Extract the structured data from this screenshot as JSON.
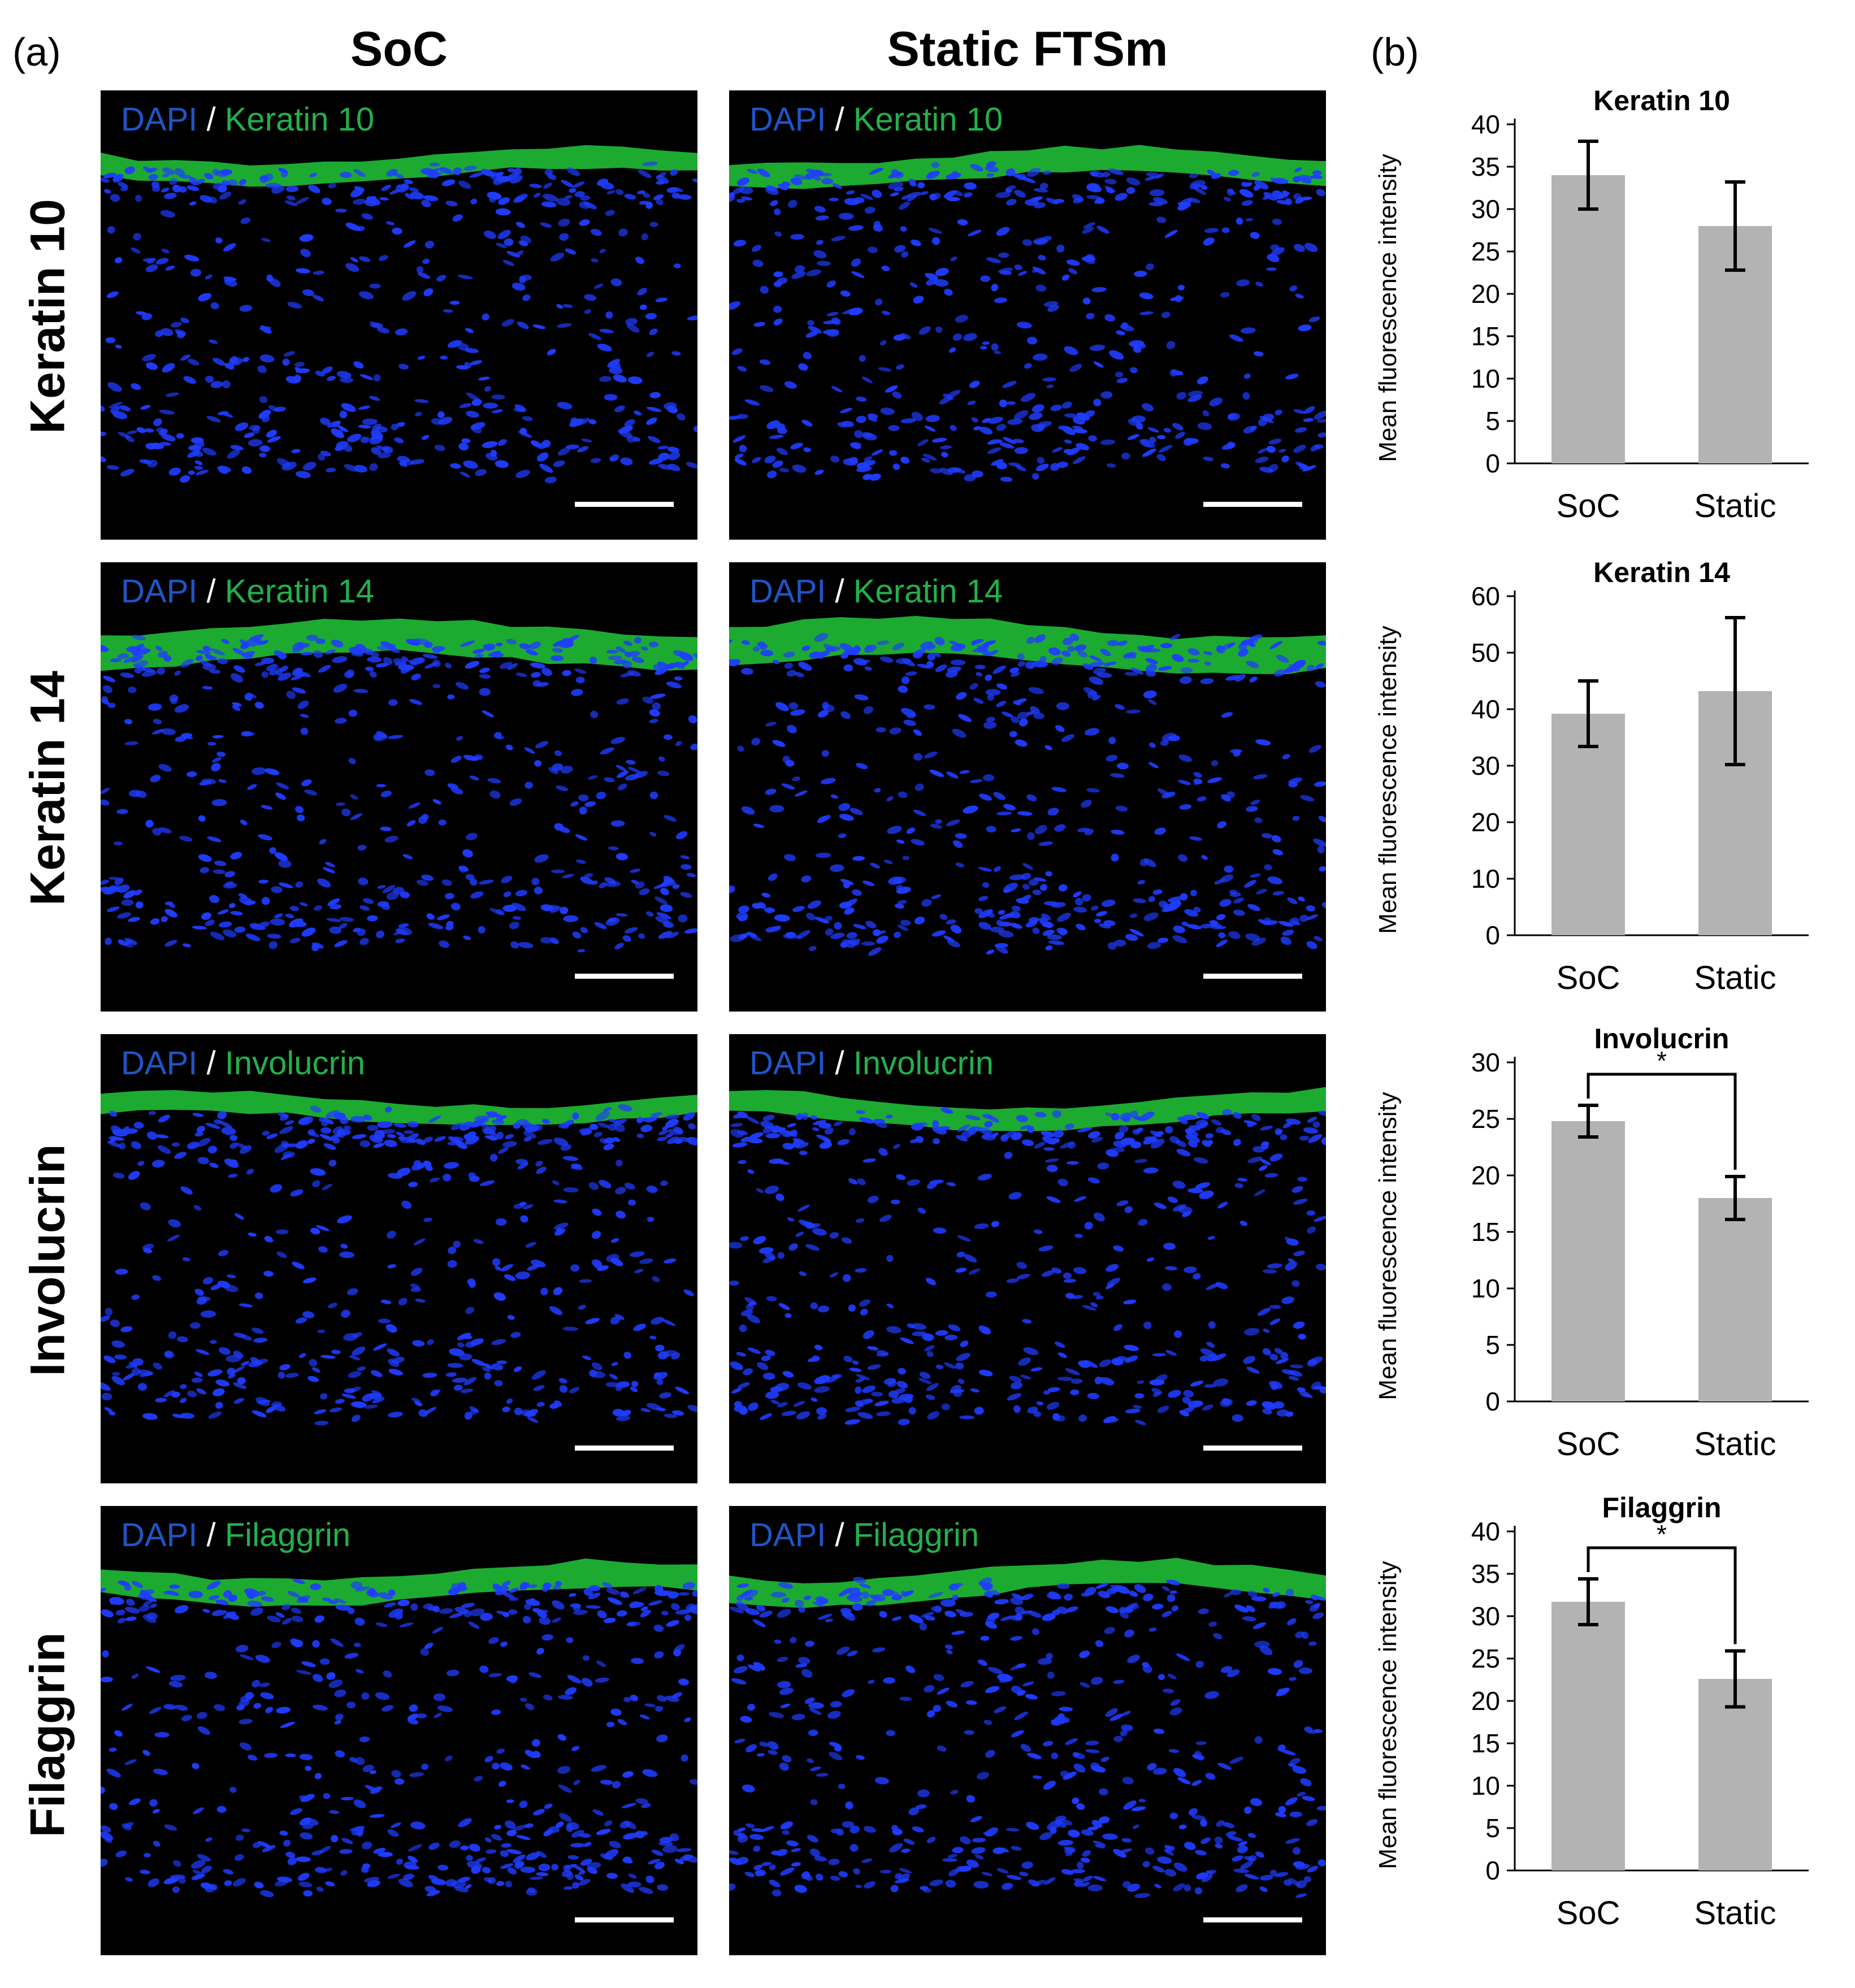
{
  "panel_labels": {
    "a": "(a)",
    "b": "(b)"
  },
  "columns": [
    "SoC",
    "Static FTSm"
  ],
  "rows": [
    "Keratin 10",
    "Keratin 14",
    "Involucrin",
    "Filaggrin"
  ],
  "stain": {
    "dapi": "DAPI",
    "separator": "/"
  },
  "micrographs": [
    {
      "row": "Keratin 10",
      "col": "SoC",
      "marker": "Keratin 10"
    },
    {
      "row": "Keratin 10",
      "col": "Static FTSm",
      "marker": "Keratin 10"
    },
    {
      "row": "Keratin 14",
      "col": "SoC",
      "marker": "Keratin 14"
    },
    {
      "row": "Keratin 14",
      "col": "Static FTSm",
      "marker": "Keratin 14"
    },
    {
      "row": "Involucrin",
      "col": "SoC",
      "marker": "Involucrin"
    },
    {
      "row": "Involucrin",
      "col": "Static FTSm",
      "marker": "Involucrin"
    },
    {
      "row": "Filaggrin",
      "col": "SoC",
      "marker": "Filaggrin"
    },
    {
      "row": "Filaggrin",
      "col": "Static FTSm",
      "marker": "Filaggrin"
    }
  ],
  "colors": {
    "bar": "#b3b3b3",
    "nuclei": "#1f3cff",
    "marker": "#22c83a",
    "background": "#000000"
  },
  "chart_data": [
    {
      "type": "bar",
      "title": "Keratin 10",
      "ylabel": "Mean fluorescence intensity",
      "categories": [
        "SoC",
        "Static"
      ],
      "values": [
        34,
        28
      ],
      "errors": [
        4,
        5.2
      ],
      "ylim": [
        0,
        40
      ],
      "ticks": [
        0,
        5,
        10,
        15,
        20,
        25,
        30,
        35,
        40
      ],
      "significance": null
    },
    {
      "type": "bar",
      "title": "Keratin 14",
      "ylabel": "Mean fluorescence intensity",
      "categories": [
        "SoC",
        "Static"
      ],
      "values": [
        39.2,
        43.2
      ],
      "errors": [
        5.8,
        13
      ],
      "ylim": [
        0,
        60
      ],
      "ticks": [
        0,
        10,
        20,
        30,
        40,
        50,
        60
      ],
      "significance": null
    },
    {
      "type": "bar",
      "title": "Involucrin",
      "ylabel": "Mean fluorescence intensity",
      "categories": [
        "SoC",
        "Static"
      ],
      "values": [
        24.8,
        18
      ],
      "errors": [
        1.4,
        1.9
      ],
      "ylim": [
        0,
        30
      ],
      "ticks": [
        0,
        5,
        10,
        15,
        20,
        25,
        30
      ],
      "significance": "*"
    },
    {
      "type": "bar",
      "title": "Filaggrin",
      "ylabel": "Mean fluorescence intensity",
      "categories": [
        "SoC",
        "Static"
      ],
      "values": [
        31.7,
        22.6
      ],
      "errors": [
        2.7,
        3.3
      ],
      "ylim": [
        0,
        40
      ],
      "ticks": [
        0,
        5,
        10,
        15,
        20,
        25,
        30,
        35,
        40
      ],
      "significance": "*"
    }
  ]
}
